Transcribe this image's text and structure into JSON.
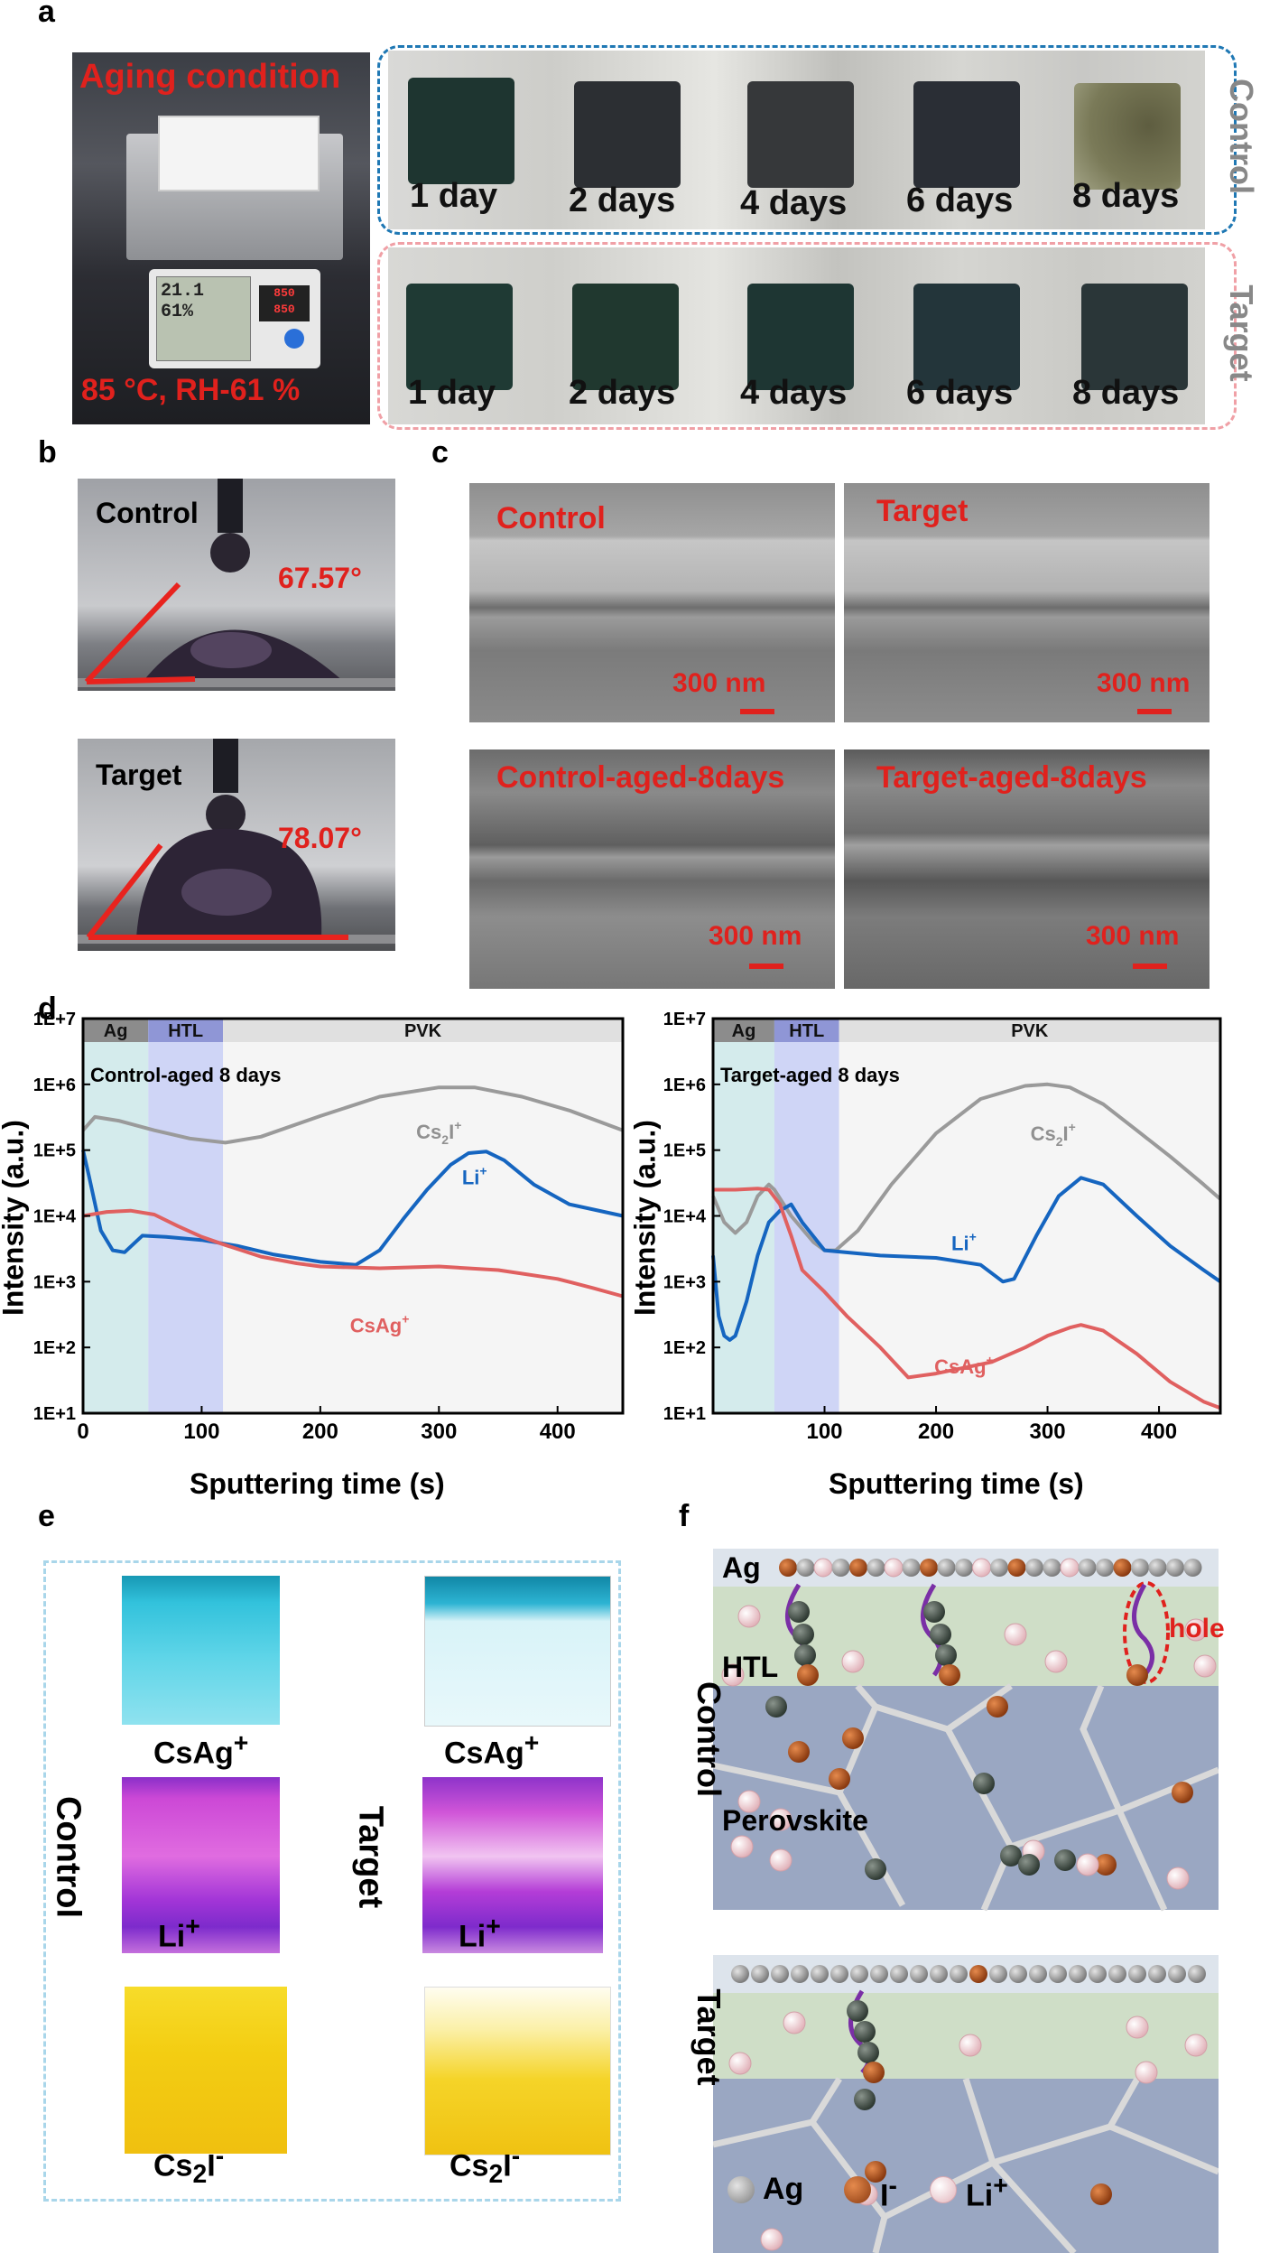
{
  "panel_labels": {
    "a": "a",
    "b": "b",
    "c": "c",
    "d": "d",
    "e": "e",
    "f": "f"
  },
  "panel_a": {
    "aging_title": "Aging condition",
    "aging_condition": "85 °C, RH-61 %",
    "meter_temp": "21.1",
    "meter_humidity": "61%",
    "controller_display_1": "850",
    "controller_display_2": "850",
    "rows": [
      {
        "label": "Control",
        "days": [
          "1 day",
          "2 days",
          "4 days",
          "6 days",
          "8 days"
        ]
      },
      {
        "label": "Target",
        "days": [
          "1 day",
          "2 days",
          "4 days",
          "6 days",
          "8 days"
        ]
      }
    ]
  },
  "panel_b": {
    "images": [
      {
        "label": "Control",
        "angle": "67.57°"
      },
      {
        "label": "Target",
        "angle": "78.07°"
      }
    ]
  },
  "panel_c": {
    "images": [
      {
        "label": "Control",
        "scale": "300 nm"
      },
      {
        "label": "Target",
        "scale": "300 nm"
      },
      {
        "label": "Control-aged-8days",
        "scale": "300 nm"
      },
      {
        "label": "Target-aged-8days",
        "scale": "300 nm"
      }
    ]
  },
  "panel_d": {
    "xlabel": "Sputtering time (s)",
    "ylabel": "Intensity (a.u.)",
    "regions": [
      "Ag",
      "HTL",
      "PVK"
    ],
    "charts": [
      {
        "annotation": "Control-aged 8 days",
        "cs2i": "Cs2I+",
        "li": "Li+",
        "csag": "CsAg+"
      },
      {
        "annotation": "Target-aged 8 days",
        "cs2i": "Cs2I+",
        "li": "Li+",
        "csag": "CsAg+"
      }
    ]
  },
  "chart_data": [
    {
      "type": "line",
      "annotation": "Control-aged 8 days",
      "xlabel": "Sputtering time (s)",
      "ylabel": "Intensity (a.u.)",
      "xlim": [
        0,
        455
      ],
      "ylim": [
        10,
        10000000
      ],
      "yscale": "log",
      "xticks": [
        0,
        100,
        200,
        300,
        400
      ],
      "yticks": [
        "1E+1",
        "1E+2",
        "1E+3",
        "1E+4",
        "1E+5",
        "1E+6",
        "1E+7"
      ],
      "regions": [
        {
          "name": "Ag",
          "x": [
            0,
            55
          ]
        },
        {
          "name": "HTL",
          "x": [
            55,
            118
          ]
        },
        {
          "name": "PVK",
          "x": [
            118,
            455
          ]
        }
      ],
      "series": [
        {
          "name": "Cs2I+",
          "color": "#9a9a9a",
          "x": [
            0,
            10,
            30,
            60,
            90,
            120,
            150,
            200,
            250,
            300,
            330,
            370,
            410,
            455
          ],
          "y": [
            200000,
            320000,
            280000,
            200000,
            150000,
            130000,
            160000,
            330000,
            650000,
            900000,
            900000,
            650000,
            400000,
            200000
          ]
        },
        {
          "name": "Li+",
          "color": "#1565c0",
          "x": [
            0,
            5,
            15,
            25,
            35,
            50,
            70,
            100,
            130,
            160,
            200,
            230,
            250,
            270,
            290,
            310,
            325,
            340,
            355,
            380,
            410,
            455
          ],
          "y": [
            100000,
            40000,
            6000,
            3000,
            2800,
            5000,
            4800,
            4300,
            3500,
            2600,
            2000,
            1800,
            3000,
            9000,
            25000,
            60000,
            90000,
            95000,
            70000,
            30000,
            15000,
            10000
          ]
        },
        {
          "name": "CsAg+",
          "color": "#e06060",
          "x": [
            0,
            20,
            40,
            60,
            80,
            100,
            120,
            150,
            180,
            200,
            250,
            300,
            350,
            400,
            430,
            455
          ],
          "y": [
            10000,
            11500,
            12000,
            10500,
            7000,
            4800,
            3600,
            2400,
            1900,
            1700,
            1600,
            1700,
            1500,
            1100,
            800,
            600
          ]
        }
      ]
    },
    {
      "type": "line",
      "annotation": "Target-aged 8 days",
      "xlabel": "Sputtering time (s)",
      "ylabel": "",
      "xlim": [
        0,
        455
      ],
      "ylim": [
        10,
        10000000
      ],
      "yscale": "log",
      "xticks": [
        100,
        200,
        300,
        400
      ],
      "yticks": [
        "1E+1",
        "1E+2",
        "1E+3",
        "1E+4",
        "1E+5",
        "1E+6",
        "1E+7"
      ],
      "regions": [
        {
          "name": "Ag",
          "x": [
            0,
            55
          ]
        },
        {
          "name": "HTL",
          "x": [
            55,
            113
          ]
        },
        {
          "name": "PVK",
          "x": [
            113,
            455
          ]
        }
      ],
      "series": [
        {
          "name": "Cs2I+",
          "color": "#9a9a9a",
          "x": [
            0,
            10,
            20,
            30,
            40,
            50,
            55,
            70,
            90,
            100,
            110,
            130,
            160,
            200,
            240,
            280,
            300,
            320,
            350,
            380,
            410,
            440,
            455
          ],
          "y": [
            20000,
            8000,
            5500,
            8000,
            20000,
            30000,
            25000,
            10000,
            4000,
            3000,
            3000,
            6000,
            30000,
            180000,
            600000,
            950000,
            1000000,
            900000,
            500000,
            200000,
            80000,
            30000,
            18000
          ]
        },
        {
          "name": "Li+",
          "color": "#1565c0",
          "x": [
            0,
            5,
            10,
            15,
            20,
            30,
            40,
            50,
            60,
            70,
            80,
            100,
            150,
            200,
            240,
            260,
            270,
            290,
            310,
            330,
            350,
            380,
            410,
            440,
            455
          ],
          "y": [
            2500,
            300,
            150,
            130,
            150,
            500,
            2500,
            8000,
            12000,
            15000,
            8000,
            3000,
            2500,
            2300,
            1800,
            1000,
            1100,
            5000,
            20000,
            38000,
            30000,
            10000,
            3500,
            1500,
            1000
          ]
        },
        {
          "name": "CsAg+",
          "color": "#e06060",
          "x": [
            0,
            20,
            40,
            50,
            60,
            70,
            80,
            100,
            120,
            150,
            175,
            200,
            250,
            280,
            300,
            320,
            330,
            350,
            380,
            410,
            440,
            455
          ],
          "y": [
            25000,
            25000,
            26000,
            25000,
            15000,
            5000,
            1500,
            700,
            300,
            100,
            35,
            40,
            60,
            100,
            150,
            200,
            220,
            180,
            80,
            30,
            15,
            12
          ]
        }
      ]
    }
  ],
  "panel_e": {
    "side_labels": [
      "Control",
      "Target"
    ],
    "cubes": [
      {
        "label": "CsAg+",
        "color": "#23b9d6"
      },
      {
        "label": "Li+",
        "color": "#c23fd0"
      },
      {
        "label": "Cs2I-",
        "color": "#f2c40d"
      }
    ]
  },
  "panel_f": {
    "side_labels": [
      "Control",
      "Target"
    ],
    "layers": {
      "ag": "Ag",
      "htl": "HTL",
      "pvk": "Perovskite"
    },
    "hole": "hole",
    "legend": [
      {
        "symbol": "ag-ball",
        "label": "Ag"
      },
      {
        "symbol": "iodide-ball",
        "label": "I-"
      },
      {
        "symbol": "li-ball",
        "label": "Li+"
      }
    ]
  }
}
